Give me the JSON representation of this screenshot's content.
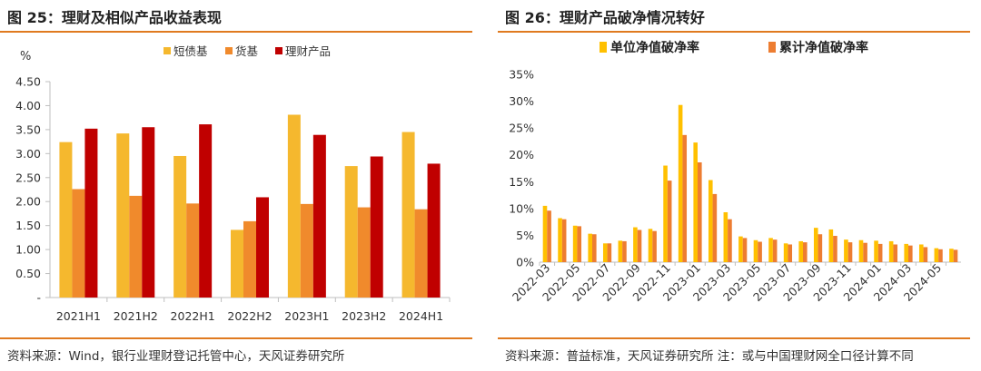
{
  "left": {
    "title": "图 25：理财及相似产品收益表现",
    "source": "资料来源：Wind，银行业理财登记托管中心，天风证券研究所"
  },
  "right": {
    "title": "图 26：理财产品破净情况转好",
    "source": "资料来源：普益标准，天风证券研究所 注：或与中国理财网全口径计算不同"
  },
  "colors": {
    "rule": "#e07a1f",
    "yellow": "#f5b82e",
    "orange": "#f08a2c",
    "red": "#c00000",
    "axis": "#bfbfbf"
  },
  "chart_data": [
    {
      "type": "bar",
      "unit_label": "%",
      "ylim": [
        0,
        4.5
      ],
      "yticks": [
        "-",
        "0.50",
        "1.00",
        "1.50",
        "2.00",
        "2.50",
        "3.00",
        "3.50",
        "4.00",
        "4.50"
      ],
      "categories": [
        "2021H1",
        "2021H2",
        "2022H1",
        "2022H2",
        "2023H1",
        "2023H2",
        "2024H1"
      ],
      "legend_position": "top-center",
      "grid": false,
      "series": [
        {
          "name": "短债基",
          "color": "#f5b82e",
          "values": [
            3.24,
            3.42,
            2.95,
            1.41,
            3.81,
            2.74,
            3.45
          ]
        },
        {
          "name": "货基",
          "color": "#f08a2c",
          "values": [
            2.26,
            2.12,
            1.96,
            1.59,
            1.95,
            1.88,
            1.84
          ]
        },
        {
          "name": "理财产品",
          "color": "#c00000",
          "values": [
            3.52,
            3.55,
            3.61,
            2.09,
            3.39,
            2.94,
            2.79
          ]
        }
      ]
    },
    {
      "type": "bar",
      "ylim": [
        0,
        35
      ],
      "yticks": [
        "0%",
        "5%",
        "10%",
        "15%",
        "20%",
        "25%",
        "30%",
        "35%"
      ],
      "legend_position": "top-center",
      "grid": false,
      "x": [
        "2022-03",
        "2022-04",
        "2022-05",
        "2022-06",
        "2022-07",
        "2022-08",
        "2022-09",
        "2022-10",
        "2022-11",
        "2022-12",
        "2023-01",
        "2023-02",
        "2023-03",
        "2023-04",
        "2023-05",
        "2023-06",
        "2023-07",
        "2023-08",
        "2023-09",
        "2023-10",
        "2023-11",
        "2023-12",
        "2024-01",
        "2024-02",
        "2024-03",
        "2024-04",
        "2024-05",
        "2024-06"
      ],
      "xtick_labels": [
        "2022-03",
        "2022-05",
        "2022-07",
        "2022-09",
        "2022-11",
        "2023-01",
        "2023-03",
        "2023-05",
        "2023-07",
        "2023-09",
        "2023-11",
        "2024-01",
        "2024-03",
        "2024-05"
      ],
      "series": [
        {
          "name": "单位净值破净率",
          "color": "#ffc000",
          "values": [
            10.5,
            8.2,
            6.8,
            5.3,
            3.5,
            4.0,
            6.5,
            6.2,
            18.0,
            29.3,
            22.3,
            15.3,
            9.3,
            4.8,
            4.1,
            4.5,
            3.5,
            3.9,
            6.4,
            6.1,
            4.2,
            4.1,
            4.0,
            3.9,
            3.4,
            3.3,
            2.6,
            2.5
          ]
        },
        {
          "name": "累计净值破净率",
          "color": "#ed7d31",
          "values": [
            9.6,
            8.0,
            6.7,
            5.2,
            3.5,
            3.9,
            6.0,
            5.8,
            15.2,
            23.7,
            18.6,
            12.7,
            8.0,
            4.5,
            3.8,
            4.2,
            3.3,
            3.7,
            5.2,
            4.9,
            3.7,
            3.6,
            3.4,
            3.3,
            3.1,
            2.8,
            2.4,
            2.3
          ]
        }
      ]
    }
  ]
}
